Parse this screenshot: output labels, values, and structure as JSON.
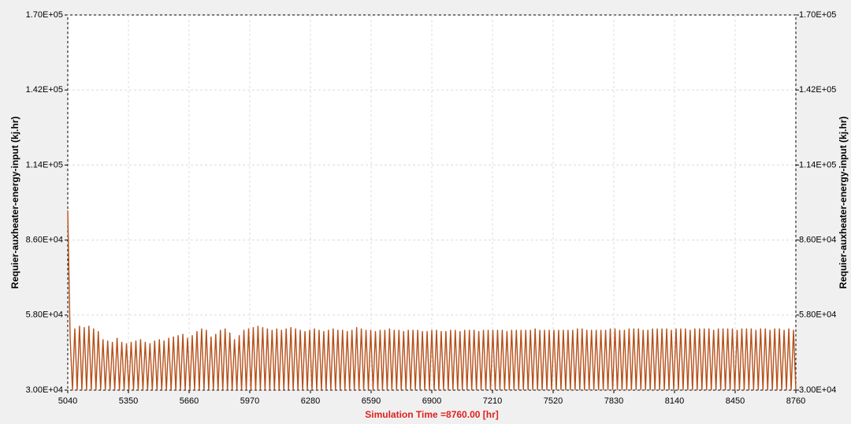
{
  "chart_data": {
    "type": "line",
    "xlabel": "Simulation Time =8760.00 [hr]",
    "ylabel": "Requier-auxheater-energy-input (kj.hr)",
    "xlim": [
      5040,
      8760
    ],
    "xticks": [
      5040,
      5350,
      5660,
      5970,
      6280,
      6590,
      6900,
      7210,
      7520,
      7830,
      8140,
      8450,
      8760
    ],
    "ylim": [
      30000,
      170000
    ],
    "yticks": [
      {
        "value": 30000,
        "label": "3.00E+04"
      },
      {
        "value": 58000,
        "label": "5.80E+04"
      },
      {
        "value": 86000,
        "label": "8.60E+04"
      },
      {
        "value": 114000,
        "label": "1.14E+05"
      },
      {
        "value": 142000,
        "label": "1.42E+05"
      },
      {
        "value": 170000,
        "label": "1.70E+05"
      }
    ],
    "grid": true,
    "series": [
      {
        "color": "#b5501a",
        "x": [
          5040,
          5052,
          5064,
          5076,
          5088,
          5100,
          5112,
          5124,
          5136,
          5148,
          5160,
          5172,
          5184,
          5196,
          5208,
          5220,
          5232,
          5244,
          5256,
          5268,
          5280,
          5292,
          5304,
          5316,
          5328,
          5340,
          5352,
          5364,
          5376,
          5388,
          5400,
          5412,
          5424,
          5436,
          5448,
          5460,
          5472,
          5484,
          5496,
          5508,
          5520,
          5532,
          5544,
          5556,
          5568,
          5580,
          5592,
          5604,
          5616,
          5628,
          5640,
          5652,
          5664,
          5676,
          5688,
          5700,
          5712,
          5724,
          5736,
          5748,
          5760,
          5772,
          5784,
          5796,
          5808,
          5820,
          5832,
          5844,
          5856,
          5868,
          5880,
          5892,
          5904,
          5916,
          5928,
          5940,
          5952,
          5964,
          5976,
          5988,
          6000,
          6012,
          6024,
          6036,
          6048,
          6060,
          6072,
          6084,
          6096,
          6108,
          6120,
          6132,
          6144,
          6156,
          6168,
          6180,
          6192,
          6204,
          6216,
          6228,
          6240,
          6252,
          6264,
          6276,
          6288,
          6300,
          6312,
          6324,
          6336,
          6348,
          6360,
          6372,
          6384,
          6396,
          6408,
          6420,
          6432,
          6444,
          6456,
          6468,
          6480,
          6492,
          6504,
          6516,
          6528,
          6540,
          6552,
          6564,
          6576,
          6588,
          6600,
          6612,
          6624,
          6636,
          6648,
          6660,
          6672,
          6684,
          6696,
          6708,
          6720,
          6732,
          6744,
          6756,
          6768,
          6780,
          6792,
          6804,
          6816,
          6828,
          6840,
          6852,
          6864,
          6876,
          6888,
          6900,
          6912,
          6924,
          6936,
          6948,
          6960,
          6972,
          6984,
          6996,
          7008,
          7020,
          7032,
          7044,
          7056,
          7068,
          7080,
          7092,
          7104,
          7116,
          7128,
          7140,
          7152,
          7164,
          7176,
          7188,
          7200,
          7212,
          7224,
          7236,
          7248,
          7260,
          7272,
          7284,
          7296,
          7308,
          7320,
          7332,
          7344,
          7356,
          7368,
          7380,
          7392,
          7404,
          7416,
          7428,
          7440,
          7452,
          7464,
          7476,
          7488,
          7500,
          7512,
          7524,
          7536,
          7548,
          7560,
          7572,
          7584,
          7596,
          7608,
          7620,
          7632,
          7644,
          7656,
          7668,
          7680,
          7692,
          7704,
          7716,
          7728,
          7740,
          7752,
          7764,
          7776,
          7788,
          7800,
          7812,
          7824,
          7836,
          7848,
          7860,
          7872,
          7884,
          7896,
          7908,
          7920,
          7932,
          7944,
          7956,
          7968,
          7980,
          7992,
          8004,
          8016,
          8028,
          8040,
          8052,
          8064,
          8076,
          8088,
          8100,
          8112,
          8124,
          8136,
          8148,
          8160,
          8172,
          8184,
          8196,
          8208,
          8220,
          8232,
          8244,
          8256,
          8268,
          8280,
          8292,
          8304,
          8316,
          8328,
          8340,
          8352,
          8364,
          8376,
          8388,
          8400,
          8412,
          8424,
          8436,
          8448,
          8460,
          8472,
          8484,
          8496,
          8508,
          8520,
          8532,
          8544,
          8556,
          8568,
          8580,
          8592,
          8604,
          8616,
          8628,
          8640,
          8652,
          8664,
          8676,
          8688,
          8700,
          8712,
          8724,
          8736,
          8748,
          8760
        ],
        "values": [
          97000,
          50000,
          30000,
          53000,
          30000,
          54000,
          30000,
          53500,
          30000,
          54000,
          30000,
          53000,
          30000,
          52000,
          30000,
          49000,
          30000,
          48500,
          30000,
          48000,
          30000,
          49500,
          30000,
          48000,
          30000,
          47500,
          30000,
          48000,
          30000,
          48500,
          30000,
          49000,
          30000,
          48000,
          30000,
          47500,
          30000,
          48500,
          30000,
          49000,
          30000,
          48500,
          30000,
          49500,
          30000,
          50000,
          30000,
          50500,
          30000,
          51000,
          30000,
          49500,
          30000,
          50500,
          30000,
          52000,
          30000,
          53000,
          30000,
          52500,
          30000,
          50000,
          30000,
          51000,
          30000,
          52500,
          30000,
          53000,
          30000,
          51500,
          30000,
          49000,
          30000,
          50500,
          30000,
          52500,
          30000,
          53000,
          30000,
          53500,
          30000,
          54000,
          30000,
          53500,
          30000,
          53000,
          30000,
          52500,
          30000,
          53000,
          30000,
          52500,
          30000,
          53000,
          30000,
          53500,
          30000,
          53000,
          30000,
          52500,
          30000,
          52000,
          30000,
          52500,
          30000,
          53000,
          30000,
          52500,
          30000,
          52000,
          30000,
          52500,
          30000,
          53000,
          30000,
          52500,
          30000,
          52500,
          30000,
          52000,
          30000,
          52500,
          30000,
          53500,
          30000,
          53000,
          30000,
          52500,
          30000,
          52500,
          30000,
          52000,
          30000,
          52500,
          30000,
          52500,
          30000,
          53000,
          30000,
          52500,
          30000,
          52500,
          30000,
          52000,
          30000,
          52500,
          30000,
          52500,
          30000,
          52500,
          30000,
          52000,
          30000,
          52000,
          30000,
          52500,
          30000,
          52500,
          30000,
          52000,
          30000,
          52000,
          30000,
          52500,
          30000,
          52500,
          30000,
          52000,
          30000,
          52500,
          30000,
          52500,
          30000,
          52500,
          30000,
          52000,
          30000,
          52500,
          30000,
          52500,
          30000,
          52500,
          30000,
          52500,
          30000,
          52500,
          30000,
          52000,
          30000,
          52500,
          30000,
          52500,
          30000,
          52500,
          30000,
          52500,
          30000,
          52500,
          30000,
          53000,
          30000,
          52500,
          30000,
          52500,
          30000,
          52500,
          30000,
          52500,
          30000,
          52500,
          30000,
          52500,
          30000,
          52500,
          30000,
          52500,
          30000,
          53000,
          30000,
          53000,
          30000,
          52500,
          30000,
          52500,
          30000,
          52500,
          30000,
          52500,
          30000,
          52500,
          30000,
          53000,
          30000,
          53000,
          30000,
          52500,
          30000,
          52500,
          30000,
          53000,
          30000,
          53000,
          30000,
          53000,
          30000,
          52500,
          30000,
          52500,
          30000,
          53000,
          30000,
          53000,
          30000,
          53000,
          30000,
          53000,
          30000,
          52500,
          30000,
          53000,
          30000,
          53000,
          30000,
          53000,
          30000,
          52500,
          30000,
          53000,
          30000,
          53000,
          30000,
          53000,
          30000,
          53000,
          30000,
          52500,
          30000,
          53000,
          30000,
          53000,
          30000,
          53000,
          30000,
          53000,
          30000,
          52500,
          30000,
          53000,
          30000,
          53000,
          30000,
          53000,
          30000,
          52500,
          30000,
          53000,
          30000,
          53000,
          30000,
          52500,
          30000,
          53000,
          30000,
          53000,
          30000,
          52500,
          30000,
          53000,
          30000,
          52500,
          30000
        ]
      }
    ]
  }
}
